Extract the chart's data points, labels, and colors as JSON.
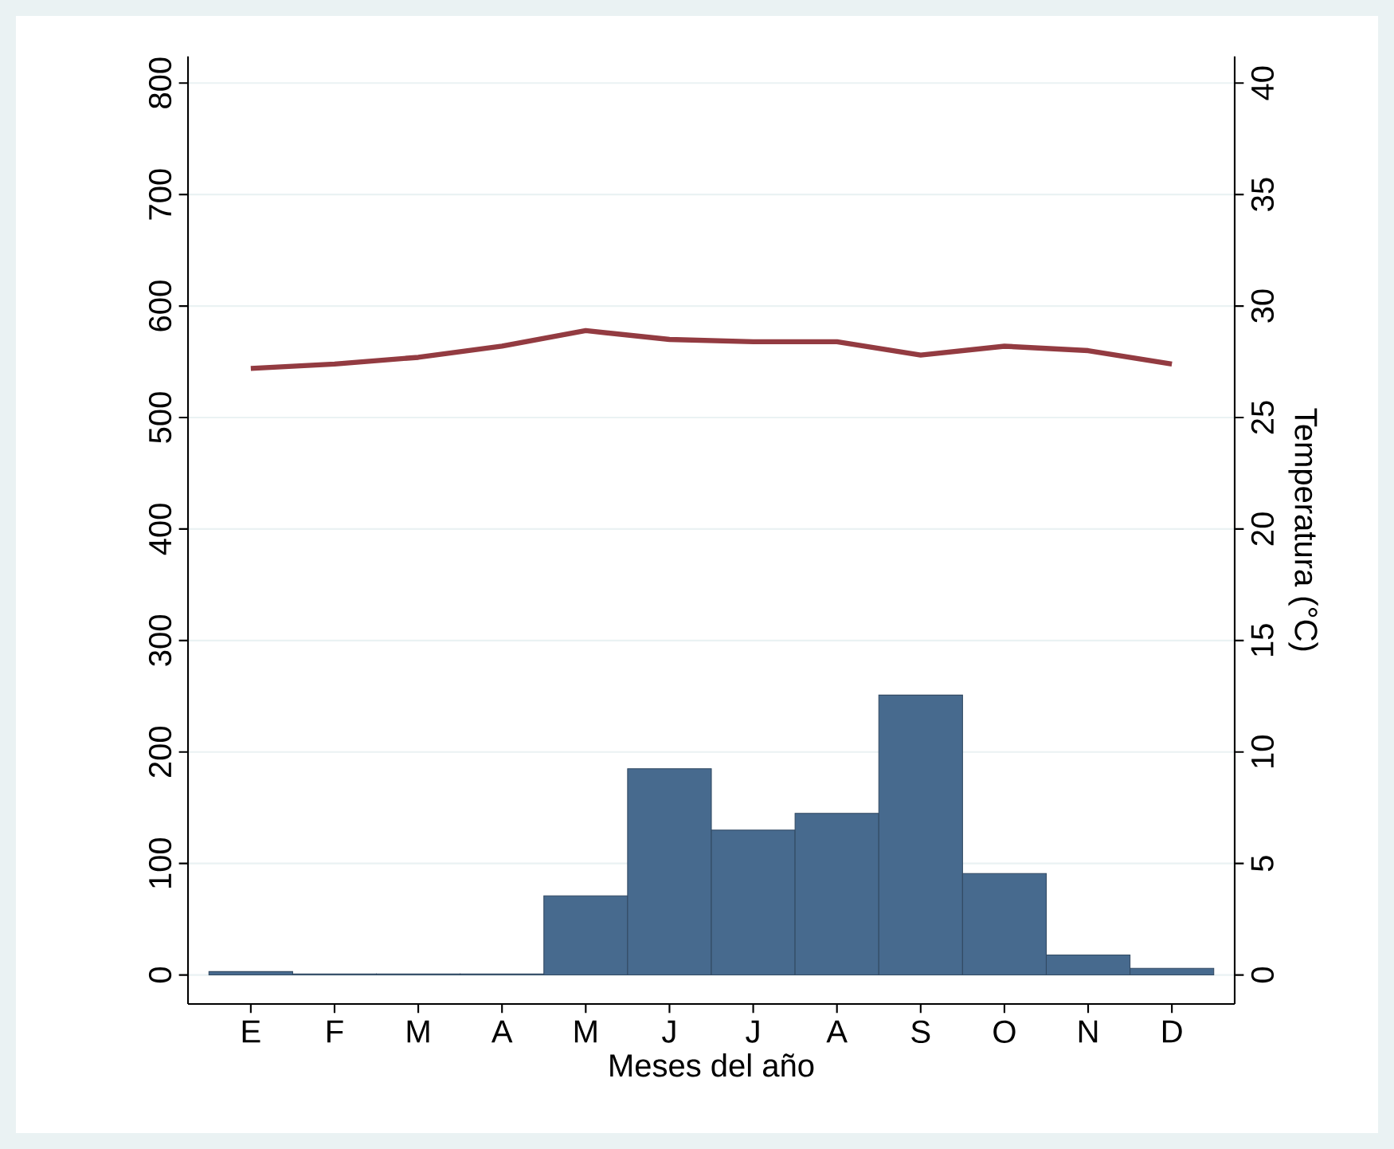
{
  "chart_data": {
    "type": "bar",
    "xlabel": "Meses del año",
    "y2label": "Temperatura (°C)",
    "categories": [
      "E",
      "F",
      "M",
      "A",
      "M",
      "J",
      "J",
      "A",
      "S",
      "O",
      "N",
      "D"
    ],
    "series": [
      {
        "color": "#476a8e",
        "values": [
          3,
          1,
          1,
          1,
          71,
          185,
          130,
          145,
          251,
          91,
          18,
          6
        ]
      },
      {
        "type": "line",
        "axis": "y2",
        "color": "#933b41",
        "values": [
          27.2,
          27.4,
          27.7,
          28.2,
          28.9,
          28.5,
          28.4,
          28.4,
          27.8,
          28.2,
          28.0,
          27.4
        ]
      }
    ],
    "ylim": [
      -26,
      824
    ],
    "yticks": [
      0,
      100,
      200,
      300,
      400,
      500,
      600,
      700,
      800
    ],
    "y2lim": [
      -1.3,
      41.2
    ],
    "y2ticks": [
      0,
      5,
      10,
      15,
      20,
      25,
      30,
      35,
      40
    ],
    "grid": "y"
  }
}
